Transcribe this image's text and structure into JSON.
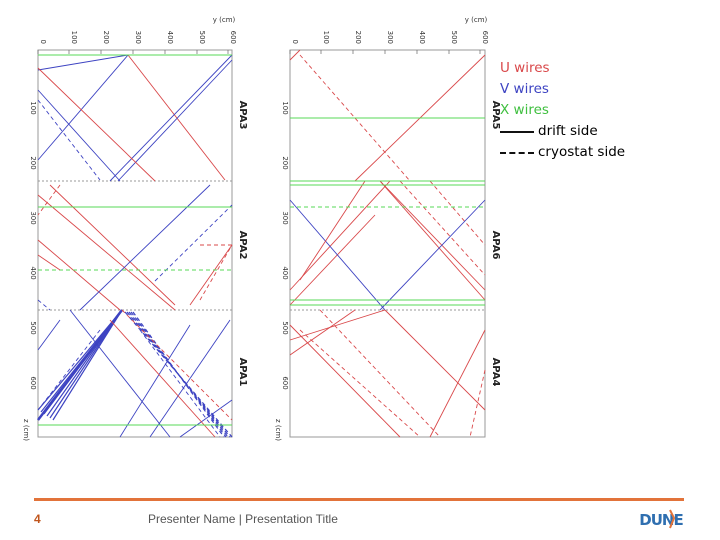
{
  "colors": {
    "u": "#d9484a",
    "v": "#3d43c2",
    "x": "#57d957",
    "frame": "#999999",
    "accent": "#e2733a"
  },
  "axes": {
    "y_label": "y (cm)",
    "y_ticks": [
      "0",
      "100",
      "200",
      "300",
      "400",
      "500",
      "600"
    ],
    "z_label": "z (cm)",
    "z_ticks": [
      "100",
      "200",
      "300",
      "400",
      "500",
      "600"
    ]
  },
  "panels": [
    {
      "apas": [
        "APA3",
        "APA2",
        "APA1"
      ]
    },
    {
      "apas": [
        "APA5",
        "APA6",
        "APA4"
      ]
    }
  ],
  "legend": {
    "u_wires": "U wires",
    "v_wires": "V wires",
    "x_wires": "X wires",
    "drift_side": "drift side",
    "cryostat_side": "cryostat side"
  },
  "footer": {
    "page_number": "4",
    "presenter": "Presenter Name | Presentation Title",
    "logo_text": "DUNE"
  }
}
